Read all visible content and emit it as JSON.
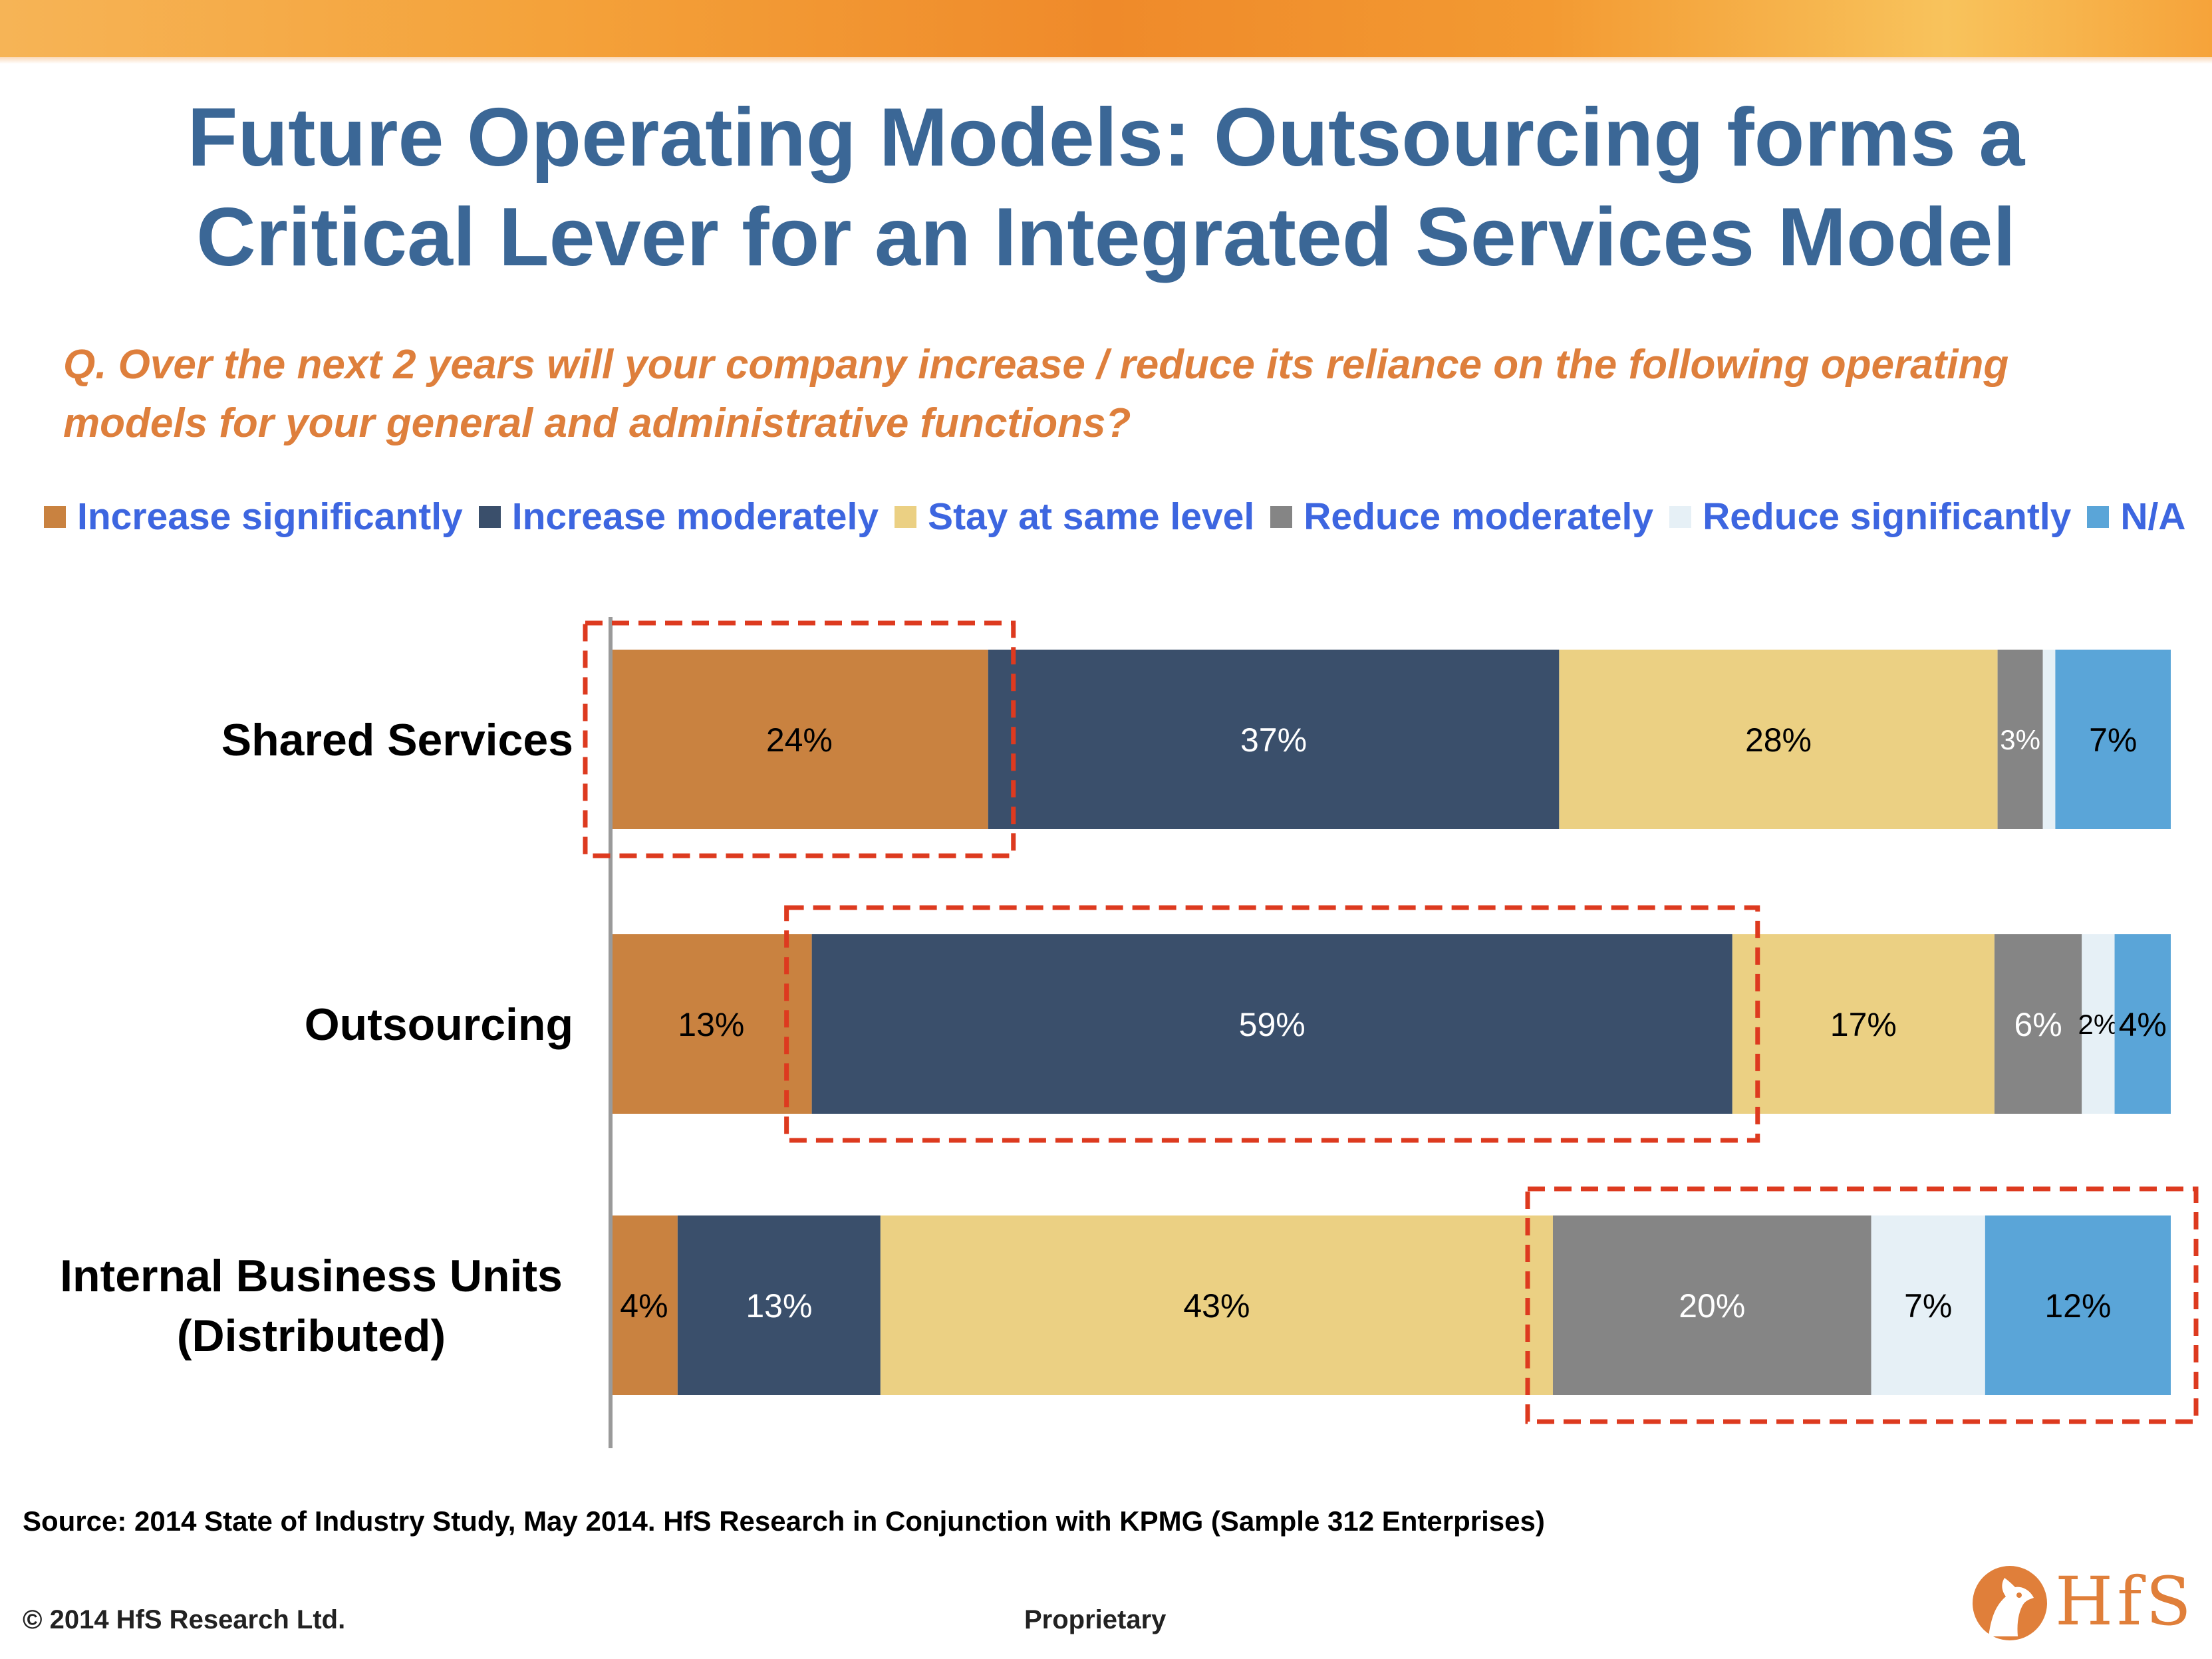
{
  "slide": {
    "title_line1": "Future Operating Models: Outsourcing forms a",
    "title_line2": "Critical Lever for an Integrated Services Model",
    "question_line1": "Q. Over the next 2 years will your company increase / reduce its reliance on the following operating",
    "question_line2": "models for your general and administrative functions?",
    "source": "Source:  2014 State  of Industry Study, May 2014.  HfS Research in Conjunction with KPMG (Sample 312 Enterprises)",
    "copyright": "© 2014 HfS Research Ltd.",
    "proprietary": "Proprietary",
    "logo_text": "HfS",
    "logo_icon": "horse-head-logo-icon"
  },
  "chart_data": {
    "type": "bar",
    "orientation": "horizontal",
    "stacked": true,
    "xlim": [
      0,
      100
    ],
    "legend_position": "top",
    "categories": [
      "Shared Services",
      "Outsourcing",
      "Internal Business Units (Distributed)"
    ],
    "category_lines": [
      [
        "Shared Services"
      ],
      [
        "Outsourcing"
      ],
      [
        "Internal Business Units",
        "(Distributed)"
      ]
    ],
    "series": [
      {
        "name": "Increase significantly",
        "color": "#c98240",
        "label_color": "#000000",
        "values": [
          24.2,
          12.9,
          4.3
        ]
      },
      {
        "name": "Increase moderately",
        "color": "#3a4f6b",
        "label_color": "#ffffff",
        "values": [
          36.6,
          59.0,
          13.0
        ]
      },
      {
        "name": "Stay at same level",
        "color": "#ebd083",
        "label_color": "#000000",
        "values": [
          28.1,
          16.8,
          43.1
        ]
      },
      {
        "name": "Reduce moderately",
        "color": "#858585",
        "label_color": "#ffffff",
        "values": [
          2.9,
          5.6,
          20.4
        ]
      },
      {
        "name": "Reduce significantly",
        "color": "#e6f0f6",
        "label_color": "#000000",
        "values": [
          0.8,
          2.1,
          7.3
        ]
      },
      {
        "name": "N/A",
        "color": "#5aa5d8",
        "label_color": "#000000",
        "values": [
          7.4,
          3.6,
          11.9
        ]
      }
    ],
    "data_labels": [
      [
        "24%",
        "37%",
        "28%",
        "3%",
        "",
        "7%"
      ],
      [
        "13%",
        "59%",
        "17%",
        "6%",
        "2%",
        "4%"
      ],
      [
        "4%",
        "13%",
        "43%",
        "20%",
        "7%",
        "12%"
      ]
    ],
    "highlights": [
      {
        "category": "Shared Services",
        "series": [
          "Increase significantly"
        ]
      },
      {
        "category": "Outsourcing",
        "series": [
          "Increase moderately"
        ]
      },
      {
        "category": "Internal Business Units (Distributed)",
        "series": [
          "Reduce moderately",
          "Reduce significantly",
          "N/A"
        ]
      }
    ],
    "highlight_color": "#dd3a1f"
  }
}
